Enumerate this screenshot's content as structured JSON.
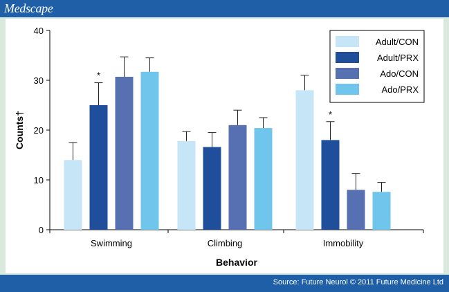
{
  "header": {
    "brand": "Medscape"
  },
  "footer": {
    "source": "Source: Future Neurol © 2011 Future Medicine Ltd"
  },
  "colors": {
    "header_bar": "#1f5fa8",
    "page_background": "#d9e9dd",
    "plot_background": "#ffffff"
  },
  "chart_data": {
    "type": "bar",
    "title": "",
    "xlabel": "Behavior",
    "ylabel": "Counts†",
    "categories": [
      "Swimming",
      "Climbing",
      "Immobility"
    ],
    "ylim": [
      0,
      40
    ],
    "yticks": [
      "0",
      "10",
      "20",
      "30",
      "40"
    ],
    "grid": false,
    "legend_position": "top-right",
    "series": [
      {
        "name": "Adult/CON",
        "color": "#c6e6f7",
        "values": [
          14.0,
          17.8,
          28.0
        ],
        "errors": [
          3.5,
          1.9,
          3.0
        ]
      },
      {
        "name": "Adult/PRX",
        "color": "#1f4e9b",
        "values": [
          25.0,
          16.6,
          18.0
        ],
        "errors": [
          4.5,
          2.9,
          3.7
        ]
      },
      {
        "name": "Ado/CON",
        "color": "#5770b2",
        "values": [
          30.7,
          21.0,
          8.0
        ],
        "errors": [
          4.0,
          3.0,
          3.3
        ]
      },
      {
        "name": "Ado/PRX",
        "color": "#70c5ec",
        "values": [
          31.7,
          20.4,
          7.6
        ],
        "errors": [
          2.8,
          2.1,
          1.9
        ]
      }
    ],
    "significance_markers": [
      {
        "series": "Adult/PRX",
        "category": "Swimming",
        "label": "*"
      },
      {
        "series": "Adult/PRX",
        "category": "Immobility",
        "label": "*"
      }
    ]
  }
}
